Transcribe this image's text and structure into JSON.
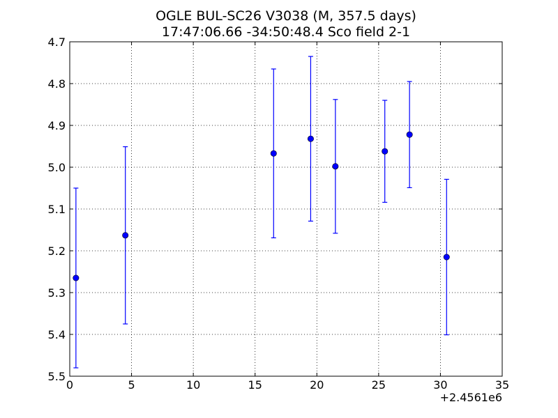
{
  "chart_data": {
    "type": "scatter",
    "title_line1": "OGLE BUL-SC26 V3038  (M, 357.5 days)",
    "title_line2": "17:47:06.66 -34:50:48.4 Sco field 2-1",
    "xlabel": "",
    "ylabel": "",
    "x_offset_label": "+2.4561e6",
    "xlim": [
      0,
      35
    ],
    "ylim": [
      5.5,
      4.7
    ],
    "y_inverted": true,
    "grid": true,
    "x_ticks": [
      0,
      5,
      10,
      15,
      20,
      25,
      30,
      35
    ],
    "x_tick_labels": [
      "0",
      "5",
      "10",
      "15",
      "20",
      "25",
      "30",
      "35"
    ],
    "y_ticks": [
      4.7,
      4.8,
      4.9,
      5.0,
      5.1,
      5.2,
      5.3,
      5.4,
      5.5
    ],
    "y_tick_labels": [
      "4.7",
      "4.8",
      "4.9",
      "5.0",
      "5.1",
      "5.2",
      "5.3",
      "5.4",
      "5.5"
    ],
    "points": [
      {
        "x": 0.5,
        "y": 5.265,
        "err": 0.215
      },
      {
        "x": 4.5,
        "y": 5.163,
        "err": 0.212
      },
      {
        "x": 16.5,
        "y": 4.967,
        "err": 0.202
      },
      {
        "x": 19.5,
        "y": 4.932,
        "err": 0.197
      },
      {
        "x": 21.5,
        "y": 4.998,
        "err": 0.16
      },
      {
        "x": 25.5,
        "y": 4.962,
        "err": 0.122
      },
      {
        "x": 27.5,
        "y": 4.922,
        "err": 0.127
      },
      {
        "x": 30.5,
        "y": 5.215,
        "err": 0.186
      }
    ],
    "marker_color": "#0000ff",
    "errorbar_color": "#0000ff"
  }
}
